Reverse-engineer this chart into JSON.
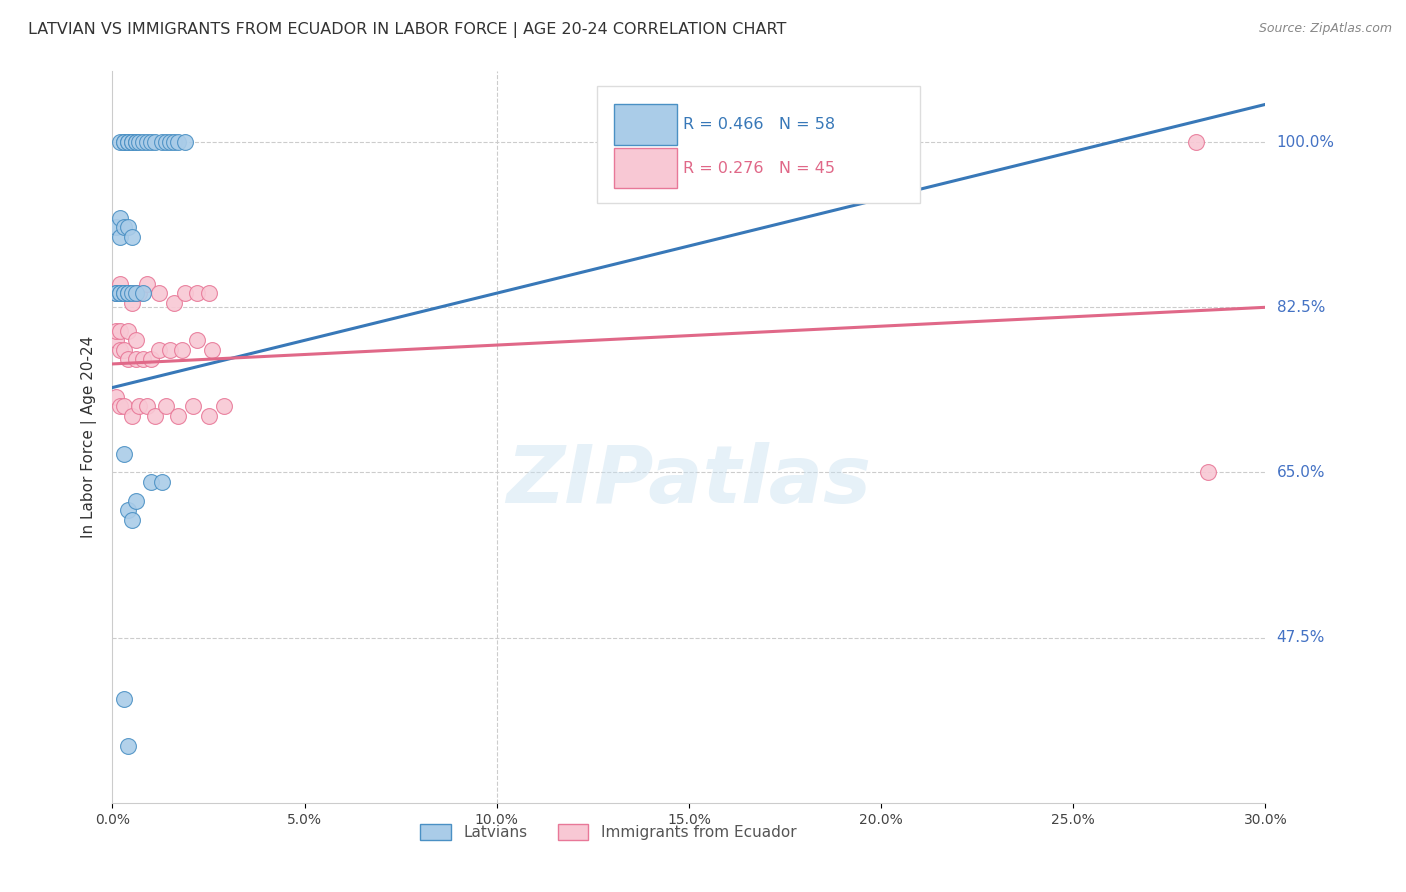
{
  "title": "LATVIAN VS IMMIGRANTS FROM ECUADOR IN LABOR FORCE | AGE 20-24 CORRELATION CHART",
  "source": "Source: ZipAtlas.com",
  "ylabel": "In Labor Force | Age 20-24",
  "ytick_labels": [
    "47.5%",
    "65.0%",
    "82.5%",
    "100.0%"
  ],
  "ytick_values": [
    0.475,
    0.65,
    0.825,
    1.0
  ],
  "xmin": 0.0,
  "xmax": 0.3,
  "ymin": 0.3,
  "ymax": 1.075,
  "blue_color": "#aacce8",
  "pink_color": "#f8c8d4",
  "blue_edge_color": "#4a90c4",
  "pink_edge_color": "#e87898",
  "blue_line_color": "#3878b8",
  "pink_line_color": "#e06888",
  "watermark": "ZIPatlas",
  "blue_trendline_x": [
    0.0,
    0.3
  ],
  "blue_trendline_y": [
    0.74,
    1.04
  ],
  "pink_trendline_x": [
    0.0,
    0.3
  ],
  "pink_trendline_y": [
    0.765,
    0.825
  ],
  "blue_x": [
    0.002,
    0.003,
    0.003,
    0.004,
    0.004,
    0.005,
    0.005,
    0.006,
    0.006,
    0.007,
    0.008,
    0.009,
    0.01,
    0.011,
    0.013,
    0.014,
    0.015,
    0.016,
    0.017,
    0.019,
    0.001,
    0.001,
    0.002,
    0.002,
    0.003,
    0.003,
    0.004,
    0.004,
    0.005,
    0.006,
    0.008,
    0.001,
    0.002,
    0.002,
    0.003,
    0.004,
    0.005,
    0.003,
    0.004,
    0.005,
    0.006,
    0.01,
    0.013,
    0.003,
    0.004
  ],
  "blue_y": [
    1.0,
    1.0,
    1.0,
    1.0,
    1.0,
    1.0,
    1.0,
    1.0,
    1.0,
    1.0,
    1.0,
    1.0,
    1.0,
    1.0,
    1.0,
    1.0,
    1.0,
    1.0,
    1.0,
    1.0,
    0.84,
    0.84,
    0.84,
    0.84,
    0.84,
    0.84,
    0.84,
    0.84,
    0.84,
    0.84,
    0.84,
    0.91,
    0.9,
    0.92,
    0.91,
    0.91,
    0.9,
    0.67,
    0.61,
    0.6,
    0.62,
    0.64,
    0.64,
    0.41,
    0.36
  ],
  "pink_x": [
    0.001,
    0.002,
    0.003,
    0.004,
    0.005,
    0.006,
    0.007,
    0.009,
    0.012,
    0.016,
    0.019,
    0.022,
    0.025,
    0.001,
    0.002,
    0.003,
    0.004,
    0.006,
    0.008,
    0.01,
    0.012,
    0.015,
    0.018,
    0.022,
    0.026,
    0.001,
    0.002,
    0.003,
    0.005,
    0.007,
    0.009,
    0.011,
    0.014,
    0.017,
    0.021,
    0.025,
    0.029,
    0.001,
    0.002,
    0.004,
    0.006,
    0.282,
    0.285
  ],
  "pink_y": [
    0.84,
    0.85,
    0.84,
    0.84,
    0.83,
    0.84,
    0.84,
    0.85,
    0.84,
    0.83,
    0.84,
    0.84,
    0.84,
    0.79,
    0.78,
    0.78,
    0.77,
    0.77,
    0.77,
    0.77,
    0.78,
    0.78,
    0.78,
    0.79,
    0.78,
    0.73,
    0.72,
    0.72,
    0.71,
    0.72,
    0.72,
    0.71,
    0.72,
    0.71,
    0.72,
    0.71,
    0.72,
    0.8,
    0.8,
    0.8,
    0.79,
    1.0,
    0.65
  ]
}
